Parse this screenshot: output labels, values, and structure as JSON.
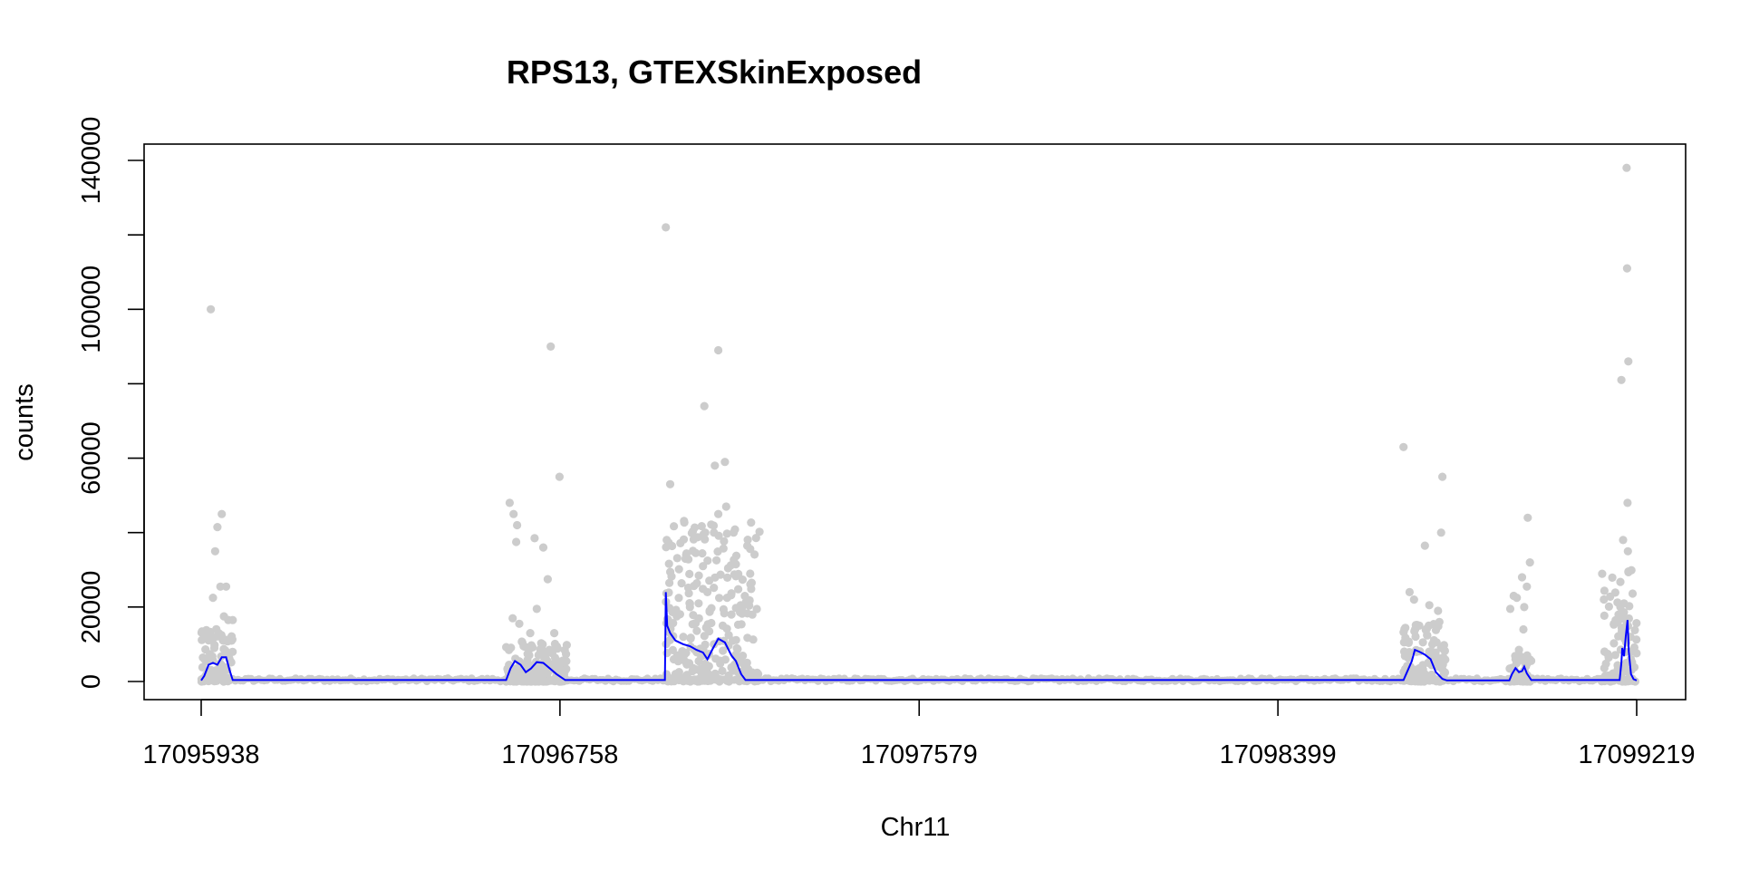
{
  "chart_data": {
    "type": "scatter",
    "title": "RPS13, GTEXSkinExposed",
    "xlabel": "Chr11",
    "ylabel": "counts",
    "xlim": [
      17095938,
      17099219
    ],
    "ylim": [
      0,
      140000
    ],
    "x_ticks": [
      17095938,
      17096758,
      17097579,
      17098399,
      17099219
    ],
    "x_tick_labels": [
      "17095938",
      "17096758",
      "17097579",
      "17098399",
      "17099219"
    ],
    "y_ticks": [
      0,
      20000,
      40000,
      60000,
      80000,
      100000,
      120000,
      140000
    ],
    "y_tick_labels": [
      "0",
      "20000",
      "",
      "60000",
      "",
      "100000",
      "",
      "140000"
    ],
    "grid": false,
    "legend": null,
    "colors": {
      "points": "#cccccc",
      "fit_line": "#0000ff",
      "axes": "#000000"
    },
    "exon_regions": [
      {
        "start": 17095938,
        "end": 17096010,
        "peak": 8000
      },
      {
        "start": 17096635,
        "end": 17096778,
        "peak": 6000
      },
      {
        "start": 17097000,
        "end": 17097215,
        "peak": 24000
      },
      {
        "start": 17098686,
        "end": 17098782,
        "peak": 9000
      },
      {
        "start": 17098928,
        "end": 17098978,
        "peak": 4000
      },
      {
        "start": 17099138,
        "end": 17099219,
        "peak": 17000
      }
    ],
    "series": [
      {
        "type": "scatter",
        "points": [
          [
            17095960,
            100000
          ],
          [
            17095975,
            41500
          ],
          [
            17095985,
            45000
          ],
          [
            17095970,
            35000
          ],
          [
            17095982,
            25500
          ],
          [
            17095995,
            25500
          ],
          [
            17095965,
            22500
          ],
          [
            17096000,
            16500
          ],
          [
            17096010,
            16500
          ],
          [
            17095990,
            17500
          ],
          [
            17095978,
            13000
          ],
          [
            17095988,
            11000
          ],
          [
            17095968,
            9000
          ],
          [
            17096643,
            48000
          ],
          [
            17096652,
            45000
          ],
          [
            17096660,
            42000
          ],
          [
            17096658,
            37500
          ],
          [
            17096650,
            17000
          ],
          [
            17096665,
            15500
          ],
          [
            17096700,
            38500
          ],
          [
            17096720,
            36000
          ],
          [
            17096737,
            90000
          ],
          [
            17096757,
            55000
          ],
          [
            17096730,
            27500
          ],
          [
            17096705,
            19500
          ],
          [
            17096690,
            13000
          ],
          [
            17096745,
            13000
          ],
          [
            17096672,
            10500
          ],
          [
            17097000,
            122000
          ],
          [
            17097010,
            53000
          ],
          [
            17097002,
            38000
          ],
          [
            17097008,
            26500
          ],
          [
            17097088,
            74000
          ],
          [
            17097120,
            89000
          ],
          [
            17097112,
            58000
          ],
          [
            17097135,
            59000
          ],
          [
            17097138,
            47000
          ],
          [
            17097110,
            40000
          ],
          [
            17097090,
            40000
          ],
          [
            17097155,
            40000
          ],
          [
            17097160,
            31500
          ],
          [
            17097045,
            33000
          ],
          [
            17097085,
            31000
          ],
          [
            17097120,
            45000
          ],
          [
            17097095,
            24000
          ],
          [
            17097140,
            22500
          ],
          [
            17097055,
            20000
          ],
          [
            17097075,
            21000
          ],
          [
            17097100,
            19000
          ],
          [
            17097150,
            18000
          ],
          [
            17097025,
            17500
          ],
          [
            17097065,
            15500
          ],
          [
            17097130,
            15000
          ],
          [
            17097040,
            12000
          ],
          [
            17097110,
            10000
          ],
          [
            17097080,
            8000
          ],
          [
            17098686,
            63000
          ],
          [
            17098735,
            36500
          ],
          [
            17098775,
            55000
          ],
          [
            17098772,
            40000
          ],
          [
            17098700,
            24000
          ],
          [
            17098710,
            22000
          ],
          [
            17098745,
            20500
          ],
          [
            17098765,
            19000
          ],
          [
            17098768,
            16000
          ],
          [
            17098722,
            15000
          ],
          [
            17098740,
            12500
          ],
          [
            17098752,
            10000
          ],
          [
            17098938,
            23000
          ],
          [
            17098945,
            22500
          ],
          [
            17098930,
            19500
          ],
          [
            17098957,
            28000
          ],
          [
            17098962,
            20000
          ],
          [
            17098970,
            44000
          ],
          [
            17098975,
            32000
          ],
          [
            17098968,
            25500
          ],
          [
            17098960,
            14000
          ],
          [
            17098950,
            8500
          ],
          [
            17098942,
            6000
          ],
          [
            17099184,
            81000
          ],
          [
            17099188,
            38000
          ],
          [
            17099190,
            21000
          ],
          [
            17099196,
            138000
          ],
          [
            17099197,
            111000
          ],
          [
            17099200,
            86000
          ],
          [
            17099198,
            48000
          ],
          [
            17099199,
            35000
          ],
          [
            17099195,
            15000
          ],
          [
            17099185,
            13500
          ],
          [
            17099205,
            12000
          ]
        ]
      },
      {
        "type": "line",
        "name": "",
        "knots": [
          [
            17095938,
            300
          ],
          [
            17095945,
            1500
          ],
          [
            17095955,
            4500
          ],
          [
            17095965,
            5000
          ],
          [
            17095975,
            4500
          ],
          [
            17095985,
            6500
          ],
          [
            17095995,
            6500
          ],
          [
            17096003,
            3000
          ],
          [
            17096010,
            400
          ],
          [
            17096635,
            400
          ],
          [
            17096645,
            3500
          ],
          [
            17096655,
            5500
          ],
          [
            17096668,
            4500
          ],
          [
            17096680,
            2500
          ],
          [
            17096692,
            3500
          ],
          [
            17096705,
            5200
          ],
          [
            17096720,
            5000
          ],
          [
            17096735,
            3500
          ],
          [
            17096750,
            2000
          ],
          [
            17096770,
            400
          ],
          [
            17096998,
            400
          ],
          [
            17097000,
            24000
          ],
          [
            17097003,
            15000
          ],
          [
            17097010,
            13000
          ],
          [
            17097022,
            11000
          ],
          [
            17097040,
            10000
          ],
          [
            17097055,
            9500
          ],
          [
            17097070,
            8500
          ],
          [
            17097085,
            7800
          ],
          [
            17097095,
            6000
          ],
          [
            17097108,
            9000
          ],
          [
            17097120,
            11500
          ],
          [
            17097135,
            10500
          ],
          [
            17097150,
            7000
          ],
          [
            17097160,
            5500
          ],
          [
            17097172,
            2000
          ],
          [
            17097182,
            400
          ],
          [
            17098686,
            400
          ],
          [
            17098692,
            2000
          ],
          [
            17098705,
            5500
          ],
          [
            17098712,
            8500
          ],
          [
            17098722,
            8000
          ],
          [
            17098735,
            7200
          ],
          [
            17098748,
            6000
          ],
          [
            17098760,
            2500
          ],
          [
            17098775,
            700
          ],
          [
            17098785,
            300
          ],
          [
            17098928,
            300
          ],
          [
            17098934,
            2000
          ],
          [
            17098942,
            3600
          ],
          [
            17098950,
            2500
          ],
          [
            17098957,
            2800
          ],
          [
            17098962,
            4000
          ],
          [
            17098968,
            2200
          ],
          [
            17098978,
            400
          ],
          [
            17099138,
            400
          ],
          [
            17099180,
            400
          ],
          [
            17099184,
            5000
          ],
          [
            17099186,
            9000
          ],
          [
            17099190,
            6800
          ],
          [
            17099194,
            12000
          ],
          [
            17099198,
            16500
          ],
          [
            17099201,
            8000
          ],
          [
            17099206,
            2000
          ],
          [
            17099212,
            600
          ],
          [
            17099219,
            300
          ]
        ]
      }
    ]
  }
}
